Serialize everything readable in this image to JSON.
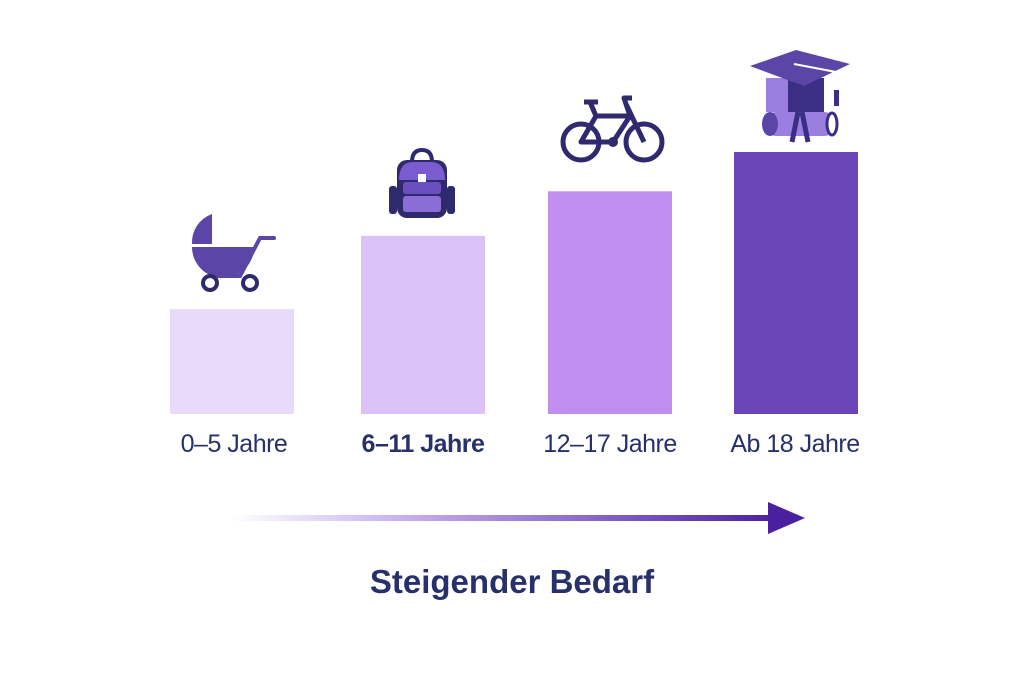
{
  "chart_data": {
    "type": "bar",
    "categories": [
      "0–5 Jahre",
      "6–11 Jahre",
      "12–17 Jahre",
      "Ab 18 Jahre"
    ],
    "values": [
      40,
      68,
      85,
      100
    ],
    "colors": [
      "#e9d9fb",
      "#dbc2f8",
      "#bf8ef0",
      "#6a46b8"
    ],
    "icons": [
      "stroller-icon",
      "backpack-icon",
      "bicycle-icon",
      "graduation-cap-icon"
    ],
    "title": "",
    "xlabel": "Steigender Bedarf",
    "ylabel": "",
    "grid": false,
    "arrow_direction": "right"
  },
  "colors": {
    "text": "#27306a",
    "icon_dark": "#2f2a6e",
    "icon_mid": "#5b46a8",
    "icon_light": "#9a7ee0",
    "arrow_end": "#4a1fa0"
  }
}
